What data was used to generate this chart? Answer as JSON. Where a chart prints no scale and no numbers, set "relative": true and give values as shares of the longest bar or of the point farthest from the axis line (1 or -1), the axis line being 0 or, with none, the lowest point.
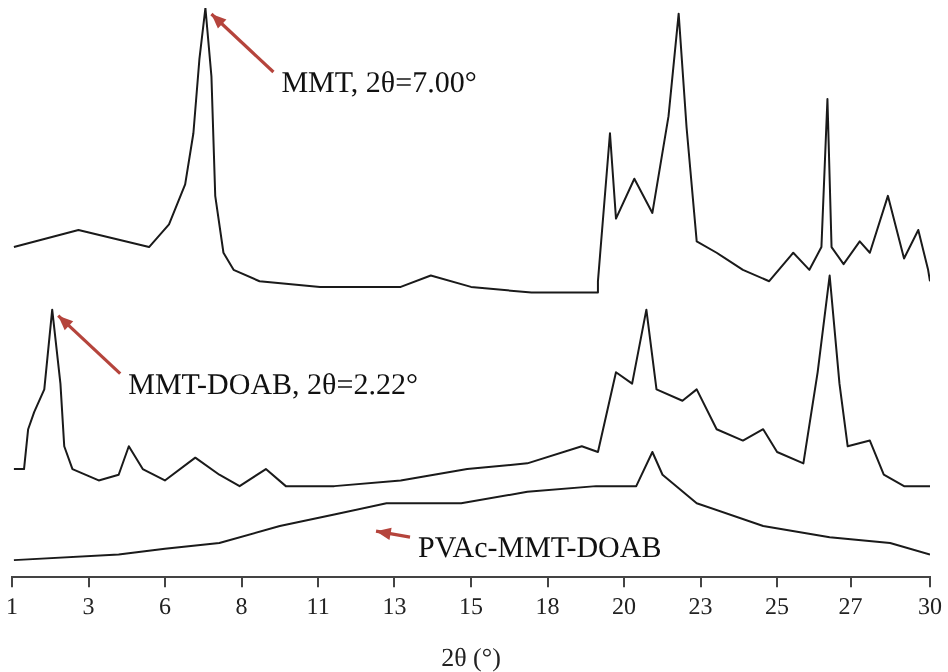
{
  "chart_data": {
    "type": "line",
    "relative": true,
    "xlabel": "2θ (°)",
    "xlim": [
      1,
      30
    ],
    "xticks": [
      1,
      {
        "value": 3.42,
        "label": "3"
      },
      {
        "value": 5.83,
        "label": "6"
      },
      {
        "value": 8.25,
        "label": "8"
      },
      {
        "value": 10.67,
        "label": "11"
      },
      {
        "value": 13.08,
        "label": "13"
      },
      {
        "value": 15.5,
        "label": "15"
      },
      {
        "value": 17.92,
        "label": "18"
      },
      {
        "value": 20.33,
        "label": "20"
      },
      {
        "value": 22.75,
        "label": "23"
      },
      {
        "value": 25.17,
        "label": "25"
      },
      {
        "value": 27.49,
        "label": "27"
      },
      30
    ],
    "grid": false,
    "legend": false,
    "marker": "none",
    "line_style": "solid",
    "series": [
      {
        "color": "#1a1a1a",
        "x": [
          1.06,
          3.1,
          5.33,
          5.96,
          6.47,
          6.73,
          6.92,
          7.11,
          7.3,
          7.42,
          7.68,
          8.0,
          8.82,
          10.73,
          13.28,
          14.23,
          15.5,
          17.41,
          19.45,
          19.51,
          19.89,
          20.08,
          20.66,
          21.23,
          21.74,
          22.06,
          22.31,
          22.63,
          23.26,
          24.09,
          24.92,
          25.68,
          26.19,
          26.57,
          26.76,
          26.89,
          27.27,
          27.78,
          28.1,
          28.67,
          29.18,
          29.63,
          29.94,
          30.0
        ],
        "values": [
          0.58,
          0.61,
          0.58,
          0.62,
          0.69,
          0.78,
          0.91,
          1.0,
          0.88,
          0.67,
          0.57,
          0.54,
          0.52,
          0.51,
          0.51,
          0.53,
          0.51,
          0.5,
          0.5,
          0.52,
          0.78,
          0.63,
          0.7,
          0.64,
          0.81,
          0.99,
          0.79,
          0.59,
          0.57,
          0.54,
          0.52,
          0.57,
          0.54,
          0.58,
          0.84,
          0.58,
          0.55,
          0.59,
          0.57,
          0.67,
          0.56,
          0.61,
          0.54,
          0.52
        ]
      },
      {
        "color": "#1a1a1a",
        "x": [
          1.06,
          1.38,
          1.51,
          1.7,
          2.02,
          2.27,
          2.53,
          2.65,
          2.91,
          3.74,
          4.37,
          4.69,
          5.13,
          5.83,
          6.79,
          7.55,
          8.19,
          9.02,
          9.65,
          11.18,
          13.28,
          15.38,
          17.28,
          19.0,
          19.51,
          20.08,
          20.59,
          21.04,
          21.36,
          22.18,
          22.63,
          23.26,
          24.09,
          24.73,
          25.17,
          26.0,
          26.45,
          26.83,
          27.14,
          27.4,
          28.1,
          28.54,
          29.18,
          30.0
        ],
        "values": [
          0.19,
          0.19,
          0.26,
          0.29,
          0.33,
          0.47,
          0.34,
          0.23,
          0.19,
          0.17,
          0.18,
          0.23,
          0.19,
          0.17,
          0.21,
          0.18,
          0.16,
          0.19,
          0.16,
          0.16,
          0.17,
          0.19,
          0.2,
          0.23,
          0.22,
          0.36,
          0.34,
          0.47,
          0.33,
          0.31,
          0.33,
          0.26,
          0.24,
          0.26,
          0.22,
          0.2,
          0.36,
          0.53,
          0.34,
          0.23,
          0.24,
          0.18,
          0.16,
          0.16
        ]
      },
      {
        "color": "#1a1a1a",
        "x": [
          1.06,
          4.37,
          5.83,
          7.55,
          9.46,
          11.18,
          12.83,
          15.19,
          17.28,
          19.45,
          20.72,
          21.23,
          21.55,
          22.63,
          24.73,
          26.83,
          28.74,
          30.0
        ],
        "values": [
          0.03,
          0.04,
          0.05,
          0.06,
          0.09,
          0.11,
          0.13,
          0.13,
          0.15,
          0.16,
          0.16,
          0.22,
          0.18,
          0.13,
          0.09,
          0.07,
          0.06,
          0.04
        ]
      }
    ],
    "annotations": [
      {
        "text": "MMT, 2θ=7.00°",
        "x": 7.11,
        "y": 1.0
      },
      {
        "text": "MMT-DOAB, 2θ=2.22°",
        "x": 2.27,
        "y": 0.47
      },
      "PVAc-MMT-DOAB"
    ]
  }
}
